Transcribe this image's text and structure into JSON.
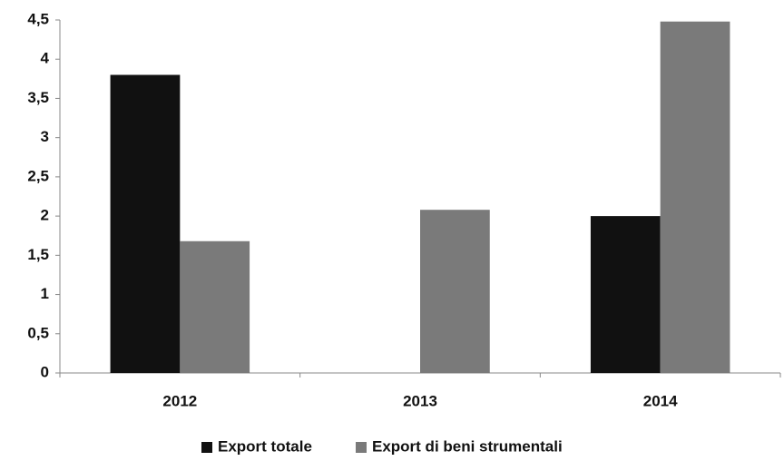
{
  "chart_data": {
    "type": "bar",
    "categories": [
      "2012",
      "2013",
      "2014"
    ],
    "series": [
      {
        "name": "Export totale",
        "color": "#111111",
        "values": [
          3.8,
          0,
          2.0
        ]
      },
      {
        "name": "Export di beni strumentali",
        "color": "#7a7a7a",
        "values": [
          1.68,
          2.08,
          4.48
        ]
      }
    ],
    "ylim": [
      0,
      4.5
    ],
    "yticks": [
      0,
      {
        "value": 0.5,
        "label": "0,5"
      },
      1,
      {
        "value": 1.5,
        "label": "1,5"
      },
      2,
      {
        "value": 2.5,
        "label": "2,5"
      },
      3,
      {
        "value": 3.5,
        "label": "3,5"
      },
      4,
      {
        "value": 4.5,
        "label": "4,5"
      }
    ],
    "grid": false,
    "legend": "bottom"
  }
}
